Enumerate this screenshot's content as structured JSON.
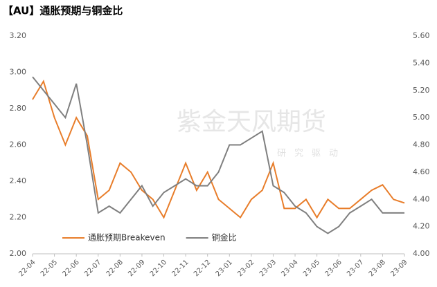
{
  "chart_data": {
    "type": "line",
    "title": "【AU】通胀预期与铜金比",
    "watermark": "紫金天风期货",
    "watermark_sub": "研究驱动",
    "categories": [
      "22-04",
      null,
      "22-05",
      null,
      "22-06",
      null,
      "22-07",
      null,
      "22-08",
      null,
      "22-09",
      null,
      "22-10",
      null,
      "22-11",
      null,
      "22-12",
      null,
      "23-01",
      null,
      "23-02",
      null,
      "23-03",
      null,
      "23-04",
      null,
      "23-05",
      null,
      "23-06",
      null,
      "23-07",
      null,
      "23-08",
      null,
      "23-09"
    ],
    "series": [
      {
        "name": "通胀预期Breakeven",
        "color": "#e87d2a",
        "axis": "y",
        "values": [
          2.85,
          2.95,
          2.75,
          2.6,
          2.75,
          2.65,
          2.3,
          2.35,
          2.5,
          2.45,
          2.35,
          2.3,
          2.2,
          2.35,
          2.5,
          2.35,
          2.45,
          2.3,
          2.25,
          2.2,
          2.3,
          2.35,
          2.5,
          2.25,
          2.25,
          2.3,
          2.2,
          2.3,
          2.25,
          2.25,
          2.3,
          2.35,
          2.38,
          2.3,
          2.28
        ]
      },
      {
        "name": "铜金比",
        "color": "#7f7f7f",
        "axis": "y2",
        "values": [
          5.3,
          5.2,
          5.1,
          5.0,
          5.25,
          4.8,
          4.3,
          4.35,
          4.3,
          4.4,
          4.5,
          4.35,
          4.45,
          4.5,
          4.55,
          4.5,
          4.5,
          4.6,
          4.8,
          4.8,
          4.85,
          4.9,
          4.5,
          4.45,
          4.35,
          4.3,
          4.2,
          4.15,
          4.2,
          4.3,
          4.35,
          4.4,
          4.3,
          4.3,
          4.3
        ]
      }
    ],
    "ylim": [
      2.0,
      3.2
    ],
    "yticks": [
      {
        "value": 2.0,
        "label": "2.00"
      },
      {
        "value": 2.2,
        "label": "2.20"
      },
      {
        "value": 2.4,
        "label": "2.40"
      },
      {
        "value": 2.6,
        "label": "2.60"
      },
      {
        "value": 2.8,
        "label": "2.80"
      },
      {
        "value": 3.0,
        "label": "3.00"
      },
      {
        "value": 3.2,
        "label": "3.20"
      }
    ],
    "y2lim": [
      4.0,
      5.6
    ],
    "y2ticks": [
      {
        "value": 4.0,
        "label": "4.00"
      },
      {
        "value": 4.2,
        "label": "4.20"
      },
      {
        "value": 4.4,
        "label": "4.40"
      },
      {
        "value": 4.6,
        "label": "4.60"
      },
      {
        "value": 4.8,
        "label": "4.80"
      },
      {
        "value": 5.0,
        "label": "5.00"
      },
      {
        "value": 5.2,
        "label": "5.20"
      },
      {
        "value": 5.4,
        "label": "5.40"
      },
      {
        "value": 5.6,
        "label": "5.60"
      }
    ],
    "grid": false,
    "legend": "bottom-left"
  }
}
